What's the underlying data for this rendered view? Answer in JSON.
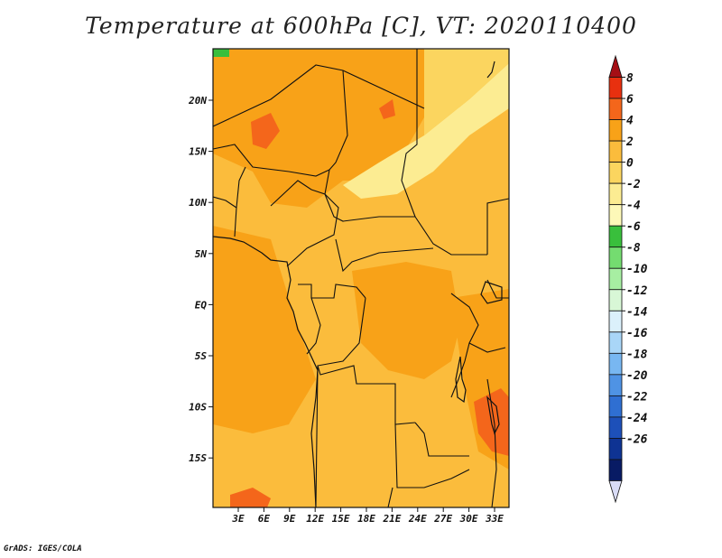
{
  "title": "Temperature at 600hPa [C], VT: 2020110400",
  "credit": "GrADS: IGES/COLA",
  "lat_labels": [
    "20N",
    "15N",
    "10N",
    "5N",
    "EQ",
    "5S",
    "10S",
    "15S"
  ],
  "lon_labels": [
    "3E",
    "6E",
    "9E",
    "12E",
    "15E",
    "18E",
    "21E",
    "24E",
    "27E",
    "30E",
    "33E"
  ],
  "colorbar": {
    "labels": [
      "8",
      "6",
      "4",
      "2",
      "0",
      "-2",
      "-4",
      "-6",
      "-8",
      "-10",
      "-12",
      "-14",
      "-16",
      "-18",
      "-20",
      "-22",
      "-24",
      "-26"
    ],
    "colors": [
      "#a50f15",
      "#e8300f",
      "#f4661b",
      "#f8a218",
      "#fbbc3c",
      "#fbd55f",
      "#fcec92",
      "#fdf8b8",
      "#39bf3c",
      "#74dc70",
      "#a7eea2",
      "#d8f7d6",
      "#dbf0fb",
      "#a9d6f7",
      "#78b7f1",
      "#4f93e4",
      "#2f6fd2",
      "#1d50b9",
      "#0e3393",
      "#081b64",
      "#d9dcf6"
    ]
  }
}
